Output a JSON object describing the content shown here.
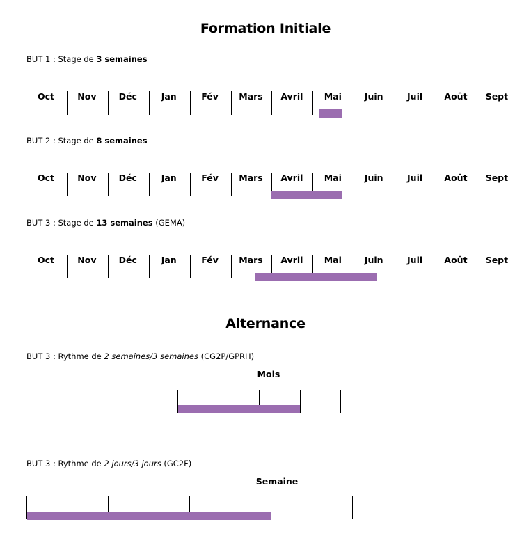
{
  "colors": {
    "bar": "#9b6db0",
    "line": "#000000"
  },
  "sections": {
    "initial_title": "Formation Initiale",
    "alternance_title": "Alternance"
  },
  "months": [
    "Oct",
    "Nov",
    "Déc",
    "Jan",
    "Fév",
    "Mars",
    "Avril",
    "Mai",
    "Juin",
    "Juil",
    "Août",
    "Sept"
  ],
  "initial_rows": [
    {
      "caption_prefix": "BUT 1 : Stage de ",
      "caption_bold": "3 semaines",
      "caption_suffix": "",
      "bar_start_month": 7.15,
      "bar_end_month": 7.7
    },
    {
      "caption_prefix": "BUT 2 : Stage de ",
      "caption_bold": "8 semaines",
      "caption_suffix": "",
      "bar_start_month": 6.0,
      "bar_end_month": 7.7
    },
    {
      "caption_prefix": "BUT 3 : Stage de ",
      "caption_bold": "13 semaines",
      "caption_suffix": " (GEMA)",
      "bar_start_month": 5.6,
      "bar_end_month": 8.55
    }
  ],
  "alternance_rows": [
    {
      "caption_prefix": "BUT 3 : Rythme de ",
      "caption_italic": "2 semaines/3 semaines",
      "caption_suffix": " (CG2P/GPRH)",
      "unit_label": "Mois",
      "divisions": 4,
      "filled": 3
    },
    {
      "caption_prefix": "BUT 3 : Rythme de ",
      "caption_italic": "2 jours/3 jours",
      "caption_suffix": " (GC2F)",
      "unit_label": "Semaine",
      "divisions": 5,
      "filled": 3
    }
  ]
}
